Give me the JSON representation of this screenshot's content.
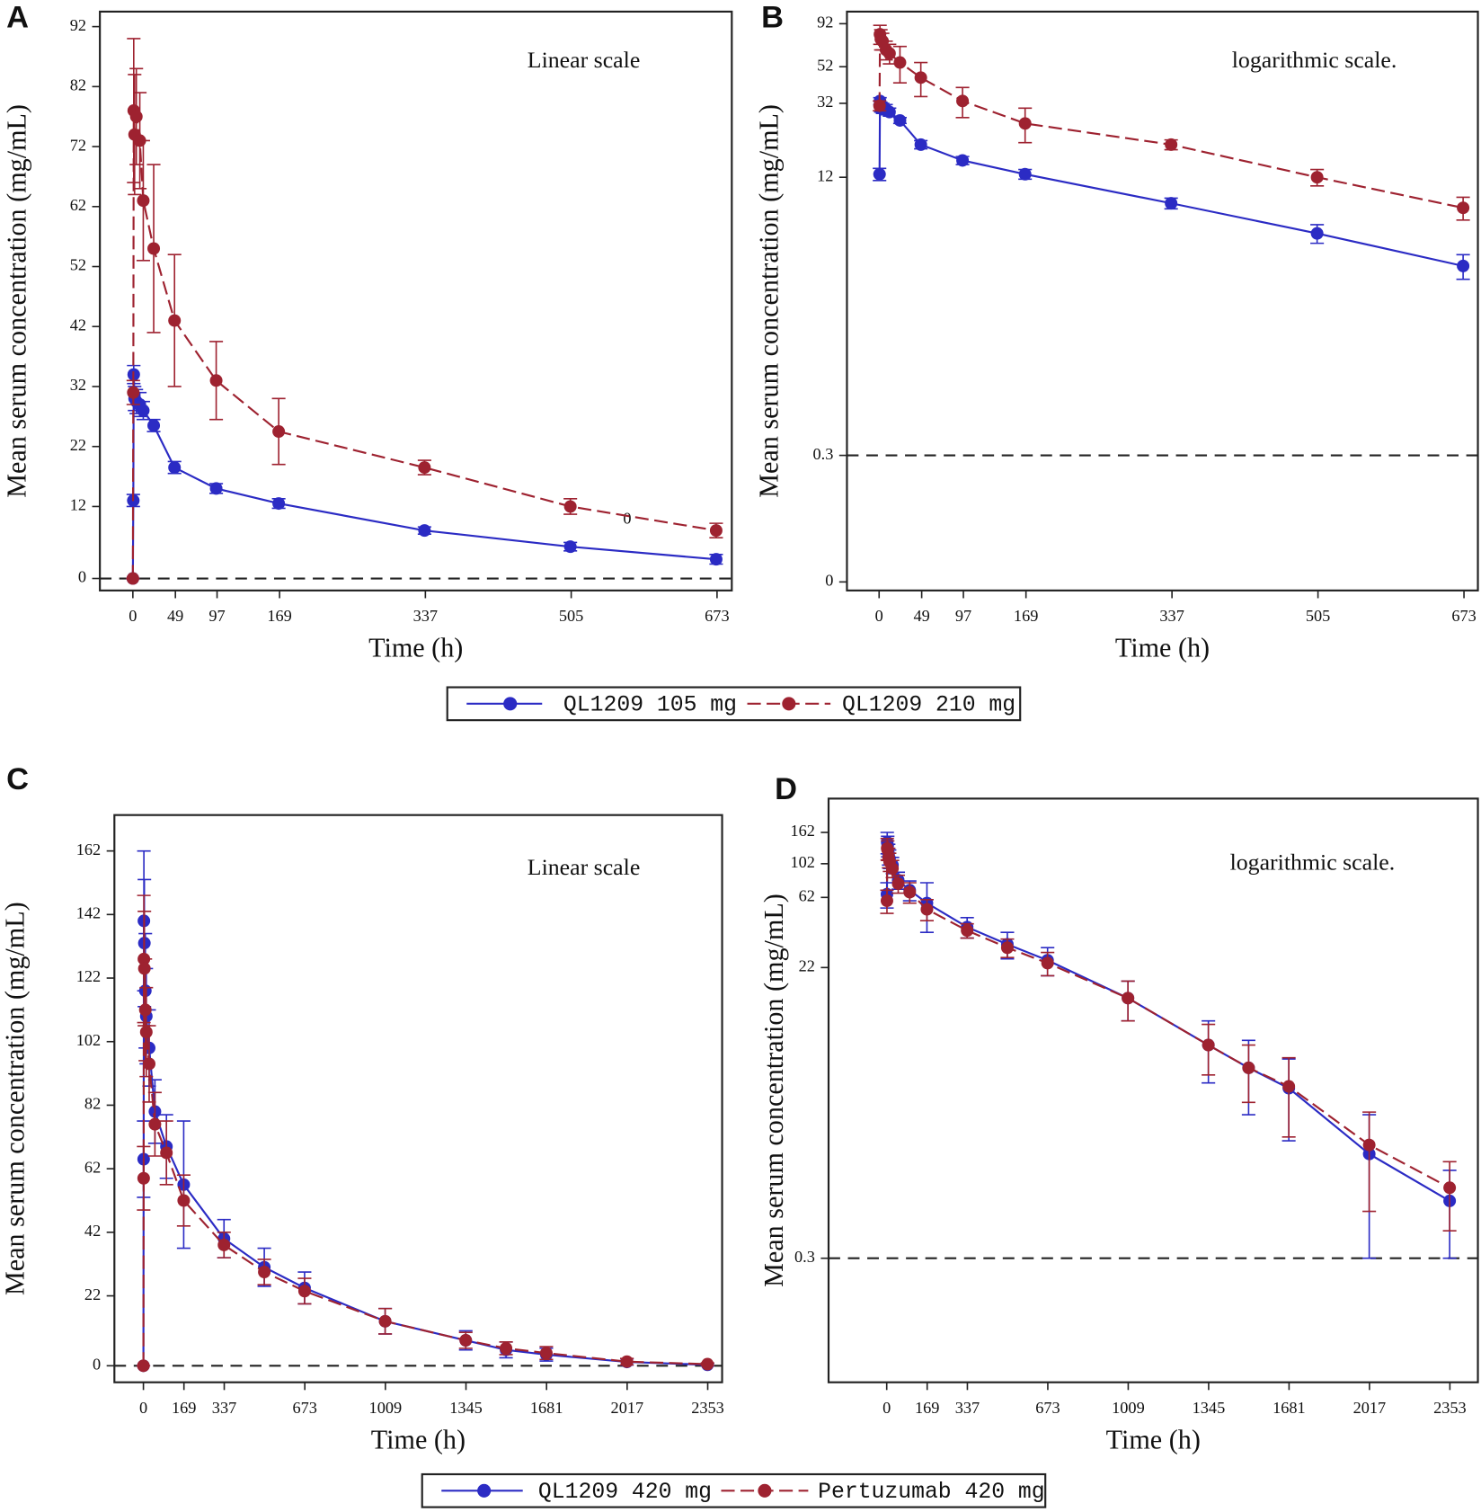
{
  "chart_data": [
    {
      "panel": "A",
      "type": "line",
      "annotation": "Linear scale",
      "stray_labels": [
        "0"
      ],
      "x_label": "Time (h)",
      "y_label": "Mean serum concentration (mg/mL)",
      "x": [
        0,
        0.5,
        1,
        2,
        4,
        8,
        12,
        24,
        48,
        96,
        168,
        336,
        504,
        672
      ],
      "xlim": [
        -38,
        690
      ],
      "xticks": [
        0,
        49,
        97,
        169,
        337,
        505,
        673
      ],
      "ylim": [
        -2,
        94.5
      ],
      "yticks": [
        0,
        12,
        22,
        32,
        42,
        52,
        62,
        72,
        82,
        92
      ],
      "hline": 0,
      "series": [
        {
          "name": "QL1209 105 mg",
          "color": "#2b2bc4",
          "dashed": false,
          "values": [
            0,
            13,
            34,
            30,
            29.5,
            29,
            28,
            25.5,
            18.5,
            15,
            12.5,
            8,
            5.3,
            3.2
          ],
          "errors": [
            0,
            1,
            1.5,
            2,
            2,
            2,
            1.5,
            1,
            1,
            0.8,
            0.8,
            0.6,
            0.7,
            0.8
          ]
        },
        {
          "name": "QL1209 210 mg",
          "color": "#9e2230",
          "dashed": true,
          "values": [
            0,
            31,
            78,
            74,
            77,
            73,
            63,
            55,
            43,
            33,
            24.5,
            18.5,
            12,
            8
          ],
          "errors": [
            0,
            2,
            12,
            10,
            8,
            8,
            10,
            14,
            11,
            6.5,
            5.5,
            1.2,
            1.3,
            1.2
          ]
        }
      ]
    },
    {
      "panel": "B",
      "type": "line",
      "annotation": "logarithmic scale.",
      "yscale": "log",
      "x_label": "Time (h)",
      "y_label": "Mean serum concentration (mg/mL)",
      "x": [
        0,
        0.5,
        1,
        2,
        4,
        8,
        12,
        24,
        48,
        96,
        168,
        336,
        504,
        672
      ],
      "xlim": [
        -37,
        689
      ],
      "xticks": [
        0,
        49,
        97,
        169,
        337,
        505,
        673
      ],
      "ylim": [
        0.05,
        108
      ],
      "yticks": [
        {
          "value": 0.056,
          "label": "0"
        },
        0.3,
        12,
        32,
        52,
        92
      ],
      "hline": 0.3,
      "series": [
        {
          "color": "#2b2bc4",
          "dashed": false,
          "values": [
            null,
            12.5,
            33,
            30.5,
            30,
            29.5,
            28.5,
            25.5,
            18.5,
            15,
            12.5,
            8.5,
            5.7,
            3.7
          ],
          "errors": [
            null,
            1,
            1.5,
            2,
            2,
            2,
            1.5,
            1,
            1,
            0.8,
            0.8,
            0.6,
            0.7,
            0.6
          ]
        },
        {
          "color": "#9e2230",
          "dashed": true,
          "values": [
            null,
            31,
            80,
            75,
            73,
            65,
            62,
            55,
            45,
            33,
            24.5,
            18.5,
            12,
            8
          ],
          "errors": [
            null,
            2,
            10,
            10,
            8,
            8,
            8,
            13,
            10,
            6.5,
            5.5,
            1.2,
            1.3,
            1.2
          ]
        }
      ]
    },
    {
      "panel": "C",
      "type": "line",
      "annotation": "Linear scale",
      "x_label": "Time (h)",
      "y_label": "Mean serum concentration (mg/mL)",
      "x": [
        0,
        1,
        2,
        4,
        8,
        12,
        24,
        48,
        96,
        168,
        336,
        504,
        672,
        1008,
        1344,
        1512,
        1680,
        2016,
        2352
      ],
      "xlim": [
        -121,
        2413
      ],
      "xticks": [
        0,
        169,
        337,
        673,
        1009,
        1345,
        1681,
        2017,
        2353
      ],
      "ylim": [
        -5.2,
        173.3
      ],
      "yticks": [
        0,
        22,
        42,
        62,
        82,
        102,
        122,
        142,
        162
      ],
      "hline": 0,
      "series": [
        {
          "name": "QL1209 420 mg",
          "color": "#2b2bc4",
          "dashed": false,
          "values": [
            0,
            65,
            140,
            133,
            118,
            110,
            100,
            80,
            69,
            57,
            40,
            31,
            24.5,
            14,
            8,
            5,
            3.5,
            1.2,
            0.3
          ],
          "errors": [
            0,
            12,
            22,
            20,
            18,
            15,
            12,
            10,
            10,
            20,
            6,
            6,
            5,
            4,
            3,
            2.5,
            2,
            1,
            0.4
          ]
        },
        {
          "name": "Pertuzumab 420 mg",
          "color": "#9e2230",
          "dashed": true,
          "values": [
            0,
            59,
            128,
            125,
            112,
            105,
            95,
            76,
            67,
            52,
            38,
            29.5,
            23.5,
            14,
            8,
            5.5,
            4,
            1.3,
            0.5
          ],
          "errors": [
            0,
            10,
            20,
            18,
            16,
            14,
            12,
            10,
            10,
            8,
            4,
            4,
            4,
            4,
            2.5,
            2,
            2,
            1,
            0.4
          ]
        }
      ]
    },
    {
      "panel": "D",
      "type": "line",
      "annotation": "logarithmic scale.",
      "yscale": "log",
      "x_label": "Time (h)",
      "y_label": "Mean serum concentration (mg/mL)",
      "x": [
        0,
        1,
        2,
        4,
        8,
        12,
        24,
        48,
        96,
        168,
        336,
        504,
        672,
        1008,
        1344,
        1512,
        1680,
        2016,
        2352
      ],
      "xlim": [
        -243,
        2470
      ],
      "xticks": [
        0,
        169,
        337,
        673,
        1009,
        1345,
        1681,
        2017,
        2353
      ],
      "ylim": [
        0.048,
        267
      ],
      "yticks": [
        0.3,
        22,
        62,
        102,
        162
      ],
      "hline": 0.3,
      "series": [
        {
          "color": "#2b2bc4",
          "dashed": false,
          "values": [
            null,
            65,
            140,
            133,
            118,
            110,
            100,
            80,
            69,
            57,
            40,
            31,
            24.5,
            14,
            7,
            5,
            3.7,
            1.4,
            0.7
          ],
          "errors": [
            null,
            12,
            22,
            20,
            18,
            15,
            12,
            10,
            10,
            20,
            6,
            6,
            5,
            4,
            3,
            2.5,
            2,
            1.1,
            0.4
          ]
        },
        {
          "color": "#9e2230",
          "dashed": true,
          "values": [
            null,
            59,
            128,
            125,
            112,
            105,
            95,
            76,
            67,
            52,
            38,
            29.5,
            23.5,
            14,
            7,
            5,
            3.8,
            1.6,
            0.85
          ],
          "errors": [
            null,
            10,
            20,
            18,
            16,
            14,
            12,
            10,
            10,
            8,
            4,
            4,
            4,
            4,
            2.5,
            2,
            2,
            1,
            0.4
          ]
        }
      ]
    }
  ]
}
